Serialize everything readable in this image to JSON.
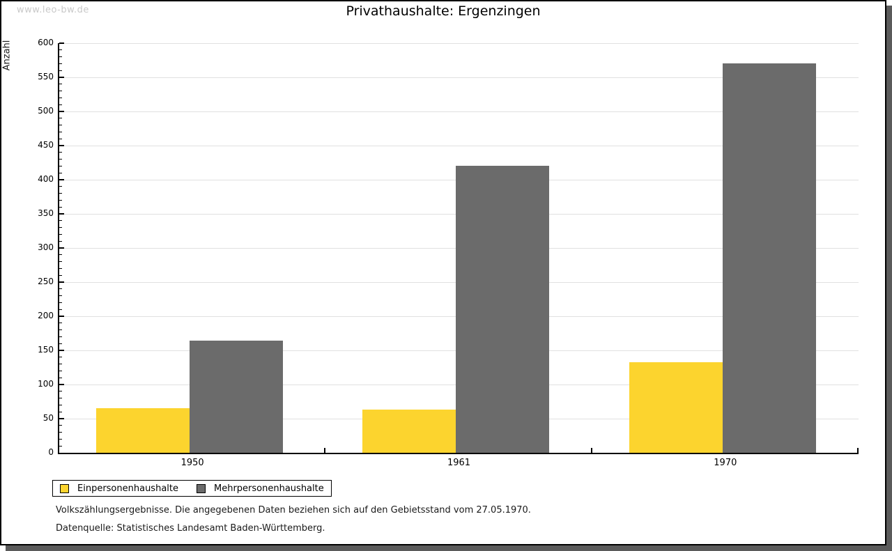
{
  "page": {
    "watermark": "www.leo-bw.de",
    "title": "Privathaushalte: Ergenzingen"
  },
  "chart_data": {
    "type": "bar",
    "title": "Privathaushalte: Ergenzingen",
    "xlabel": "",
    "ylabel": "Anzahl",
    "categories": [
      "1950",
      "1961",
      "1970"
    ],
    "series": [
      {
        "name": "Einpersonenhaushalte",
        "color": "#FCD42E",
        "values": [
          65,
          63,
          133
        ]
      },
      {
        "name": "Mehrpersonenhaushalte",
        "color": "#6B6B6B",
        "values": [
          164,
          420,
          570
        ]
      }
    ],
    "ylim": [
      0,
      600
    ],
    "ytick_step": 50,
    "yminor_step": 10,
    "grid": true,
    "legend_position": "bottom-left"
  },
  "footnotes": [
    "Volkszählungsergebnisse. Die angegebenen Daten beziehen sich auf den Gebietsstand vom 27.05.1970.",
    "Datenquelle: Statistisches Landesamt Baden-Württemberg."
  ],
  "colors": {
    "series_einpersonen": "#FCD42E",
    "series_mehrpersonen": "#6B6B6B",
    "axis": "#000000",
    "gridline": "#e0e0e0",
    "watermark": "#c9c9c9",
    "page_border": "#000000",
    "shadow": "#5b5b5b",
    "background": "#ffffff"
  }
}
